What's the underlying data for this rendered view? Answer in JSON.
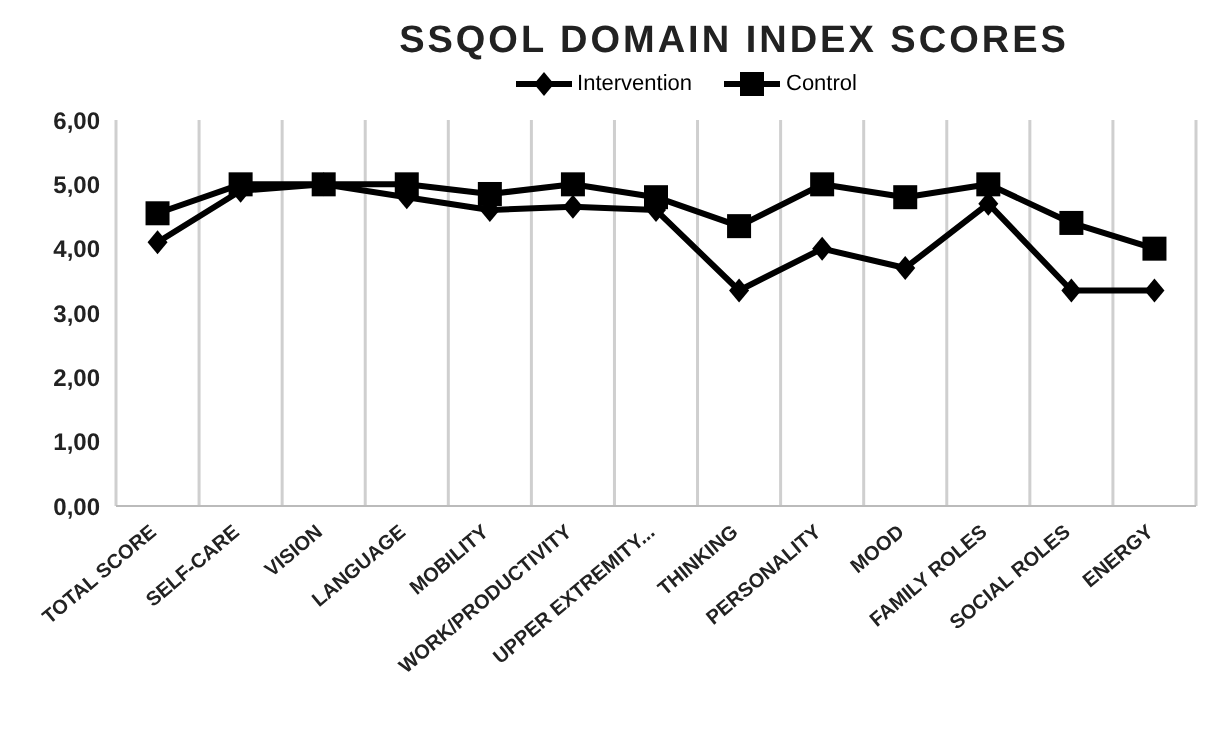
{
  "chart_data": {
    "type": "line",
    "title": "SSQOL DOMAIN INDEX SCORES",
    "categories": [
      "TOTAL SCORE",
      "SELF-CARE",
      "VISION",
      "LANGUAGE",
      "MOBILITY",
      "WORK/PRODUCTIVITY",
      "UPPER EXTREMITY...",
      "THINKING",
      "PERSONALITY",
      "MOOD",
      "FAMILY ROLES",
      "SOCIAL ROLES",
      "ENERGY"
    ],
    "series": [
      {
        "name": "Intervention",
        "color": "#000000",
        "marker": "diamond",
        "values": [
          4.1,
          4.9,
          5.0,
          4.8,
          4.6,
          4.65,
          4.6,
          3.35,
          4.0,
          3.7,
          4.7,
          3.35,
          3.35
        ]
      },
      {
        "name": "Control",
        "color": "#000000",
        "marker": "square",
        "values": [
          4.55,
          5.0,
          5.0,
          5.0,
          4.85,
          5.0,
          4.8,
          4.35,
          5.0,
          4.8,
          5.0,
          4.4,
          4.0
        ]
      }
    ],
    "ylim": [
      0,
      6
    ],
    "yticks": [
      {
        "value": 0,
        "label": "0,00"
      },
      {
        "value": 1,
        "label": "1,00"
      },
      {
        "value": 2,
        "label": "2,00"
      },
      {
        "value": 3,
        "label": "3,00"
      },
      {
        "value": 4,
        "label": "4,00"
      },
      {
        "value": 5,
        "label": "5,00"
      },
      {
        "value": 6,
        "label": "6,00"
      }
    ],
    "grid": "x",
    "legend": "top",
    "line_style": "solid"
  }
}
